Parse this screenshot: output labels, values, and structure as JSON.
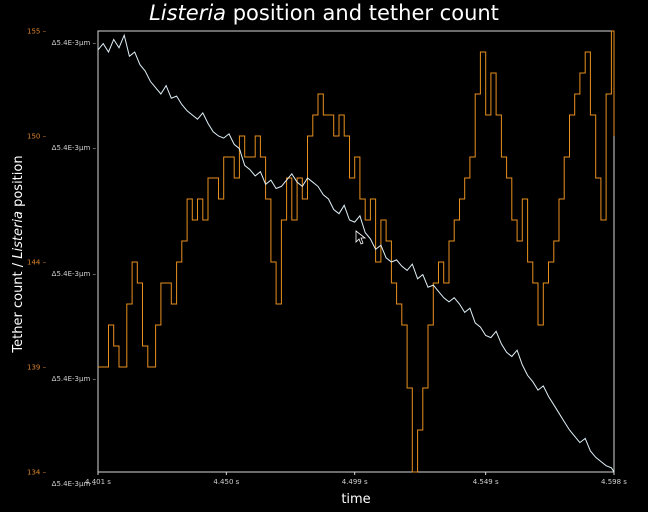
{
  "chart_data": {
    "type": "line",
    "title_italic": "Listeria",
    "title_rest": " position and tether count",
    "xlabel": "time",
    "ylabel_prefix": "Tether count / ",
    "ylabel_italic": "Listeria",
    "ylabel_suffix": " position",
    "xlim": [
      4.401,
      4.598
    ],
    "x_ticks": [
      {
        "value": 4.401,
        "label": "4.401 s"
      },
      {
        "value": 4.45,
        "label": "4.450 s"
      },
      {
        "value": 4.499,
        "label": "4.499 s"
      },
      {
        "value": 4.549,
        "label": "4.549 s"
      },
      {
        "value": 4.598,
        "label": "4.598 s"
      }
    ],
    "y_left_lim": [
      134,
      155
    ],
    "y_left_ticks": [
      {
        "value": 155,
        "label": "155 –"
      },
      {
        "value": 150,
        "label": "150 –"
      },
      {
        "value": 144,
        "label": "144 –"
      },
      {
        "value": 139,
        "label": "139 –"
      },
      {
        "value": 134,
        "label": "134 –"
      }
    ],
    "y_right_ticks": [
      {
        "value": 155,
        "label": "Δ5.4E-3μm –"
      },
      {
        "value": 150,
        "label": "Δ5.4E-3μm –"
      },
      {
        "value": 144,
        "label": "Δ5.4E-3μm –"
      },
      {
        "value": 139,
        "label": "Δ5.4E-3μm –"
      },
      {
        "value": 134,
        "label": "Δ5.4E-3μm –"
      }
    ],
    "series": [
      {
        "color": "#e8901e",
        "x": [
          4.401,
          4.405,
          4.407,
          4.409,
          4.412,
          4.414,
          4.416,
          4.418,
          4.42,
          4.421,
          4.423,
          4.425,
          4.427,
          4.429,
          4.431,
          4.433,
          4.435,
          4.437,
          4.439,
          4.441,
          4.443,
          4.445,
          4.447,
          4.449,
          4.451,
          4.453,
          4.455,
          4.457,
          4.459,
          4.461,
          4.463,
          4.465,
          4.467,
          4.469,
          4.471,
          4.473,
          4.475,
          4.477,
          4.479,
          4.481,
          4.483,
          4.485,
          4.487,
          4.489,
          4.491,
          4.493,
          4.495,
          4.497,
          4.499,
          4.501,
          4.503,
          4.505,
          4.507,
          4.509,
          4.511,
          4.513,
          4.515,
          4.517,
          4.519,
          4.521,
          4.523,
          4.525,
          4.527,
          4.529,
          4.531,
          4.533,
          4.535,
          4.537,
          4.539,
          4.541,
          4.543,
          4.545,
          4.547,
          4.549,
          4.551,
          4.553,
          4.555,
          4.557,
          4.559,
          4.561,
          4.563,
          4.565,
          4.567,
          4.569,
          4.571,
          4.573,
          4.575,
          4.577,
          4.579,
          4.581,
          4.583,
          4.585,
          4.587,
          4.589,
          4.591,
          4.593,
          4.595,
          4.597,
          4.598
        ],
        "y": [
          139,
          141,
          140,
          139,
          142,
          144,
          143,
          140,
          139,
          139,
          141,
          143,
          143,
          142,
          144,
          145,
          147,
          146,
          147,
          146,
          148,
          148,
          147,
          149,
          149,
          148,
          150,
          149,
          149,
          150,
          149,
          147,
          144,
          142,
          146,
          148,
          146,
          148,
          147,
          150,
          151,
          152,
          151,
          151,
          150,
          151,
          150,
          148,
          149,
          147,
          146,
          147,
          144,
          146,
          145,
          143,
          142,
          141,
          138,
          134,
          136,
          138,
          141,
          143,
          144,
          143,
          145,
          146,
          147,
          148,
          149,
          152,
          154,
          151,
          153,
          151,
          149,
          148,
          146,
          145,
          147,
          144,
          143,
          141,
          143,
          144,
          145,
          147,
          149,
          151,
          152,
          153,
          154,
          151,
          148,
          146,
          152,
          155,
          150
        ]
      },
      {
        "color": "#dff0f7",
        "x": [
          4.401,
          4.403,
          4.405,
          4.407,
          4.409,
          4.411,
          4.413,
          4.415,
          4.417,
          4.419,
          4.421,
          4.423,
          4.425,
          4.427,
          4.429,
          4.431,
          4.433,
          4.435,
          4.437,
          4.439,
          4.441,
          4.443,
          4.445,
          4.447,
          4.449,
          4.451,
          4.453,
          4.455,
          4.457,
          4.459,
          4.461,
          4.463,
          4.465,
          4.467,
          4.469,
          4.471,
          4.473,
          4.475,
          4.477,
          4.479,
          4.481,
          4.483,
          4.485,
          4.487,
          4.489,
          4.491,
          4.493,
          4.495,
          4.497,
          4.499,
          4.501,
          4.503,
          4.505,
          4.507,
          4.509,
          4.511,
          4.513,
          4.515,
          4.517,
          4.519,
          4.521,
          4.523,
          4.525,
          4.527,
          4.529,
          4.531,
          4.533,
          4.535,
          4.537,
          4.539,
          4.541,
          4.543,
          4.545,
          4.547,
          4.549,
          4.551,
          4.553,
          4.555,
          4.557,
          4.559,
          4.561,
          4.563,
          4.565,
          4.567,
          4.569,
          4.571,
          4.573,
          4.575,
          4.577,
          4.579,
          4.581,
          4.583,
          4.585,
          4.587,
          4.589,
          4.591,
          4.593,
          4.595,
          4.597,
          4.598
        ],
        "y": [
          154.1,
          154.4,
          154.0,
          154.6,
          154.2,
          154.8,
          153.8,
          154.0,
          153.4,
          153.1,
          152.6,
          152.3,
          152.0,
          152.4,
          151.8,
          151.9,
          151.5,
          151.2,
          151.0,
          150.8,
          151.1,
          150.6,
          150.2,
          150.0,
          149.9,
          150.1,
          149.6,
          149.4,
          148.6,
          148.4,
          148.1,
          148.3,
          147.7,
          147.9,
          147.5,
          147.6,
          147.9,
          148.2,
          147.8,
          147.6,
          148.0,
          147.8,
          147.6,
          147.2,
          147.0,
          146.5,
          146.3,
          146.7,
          146.0,
          145.9,
          146.2,
          145.4,
          145.1,
          144.6,
          144.8,
          144.2,
          144.0,
          144.1,
          143.8,
          143.6,
          143.9,
          143.2,
          143.4,
          142.8,
          142.9,
          142.6,
          142.3,
          142.1,
          142.3,
          142.0,
          141.6,
          141.8,
          141.1,
          140.9,
          140.5,
          140.4,
          140.7,
          140.1,
          139.7,
          139.5,
          139.8,
          139.1,
          138.6,
          138.3,
          137.9,
          138.1,
          137.6,
          137.2,
          136.8,
          136.4,
          136.0,
          135.7,
          135.4,
          135.6,
          135.0,
          134.7,
          134.5,
          134.3,
          134.2,
          134.0
        ]
      }
    ]
  }
}
